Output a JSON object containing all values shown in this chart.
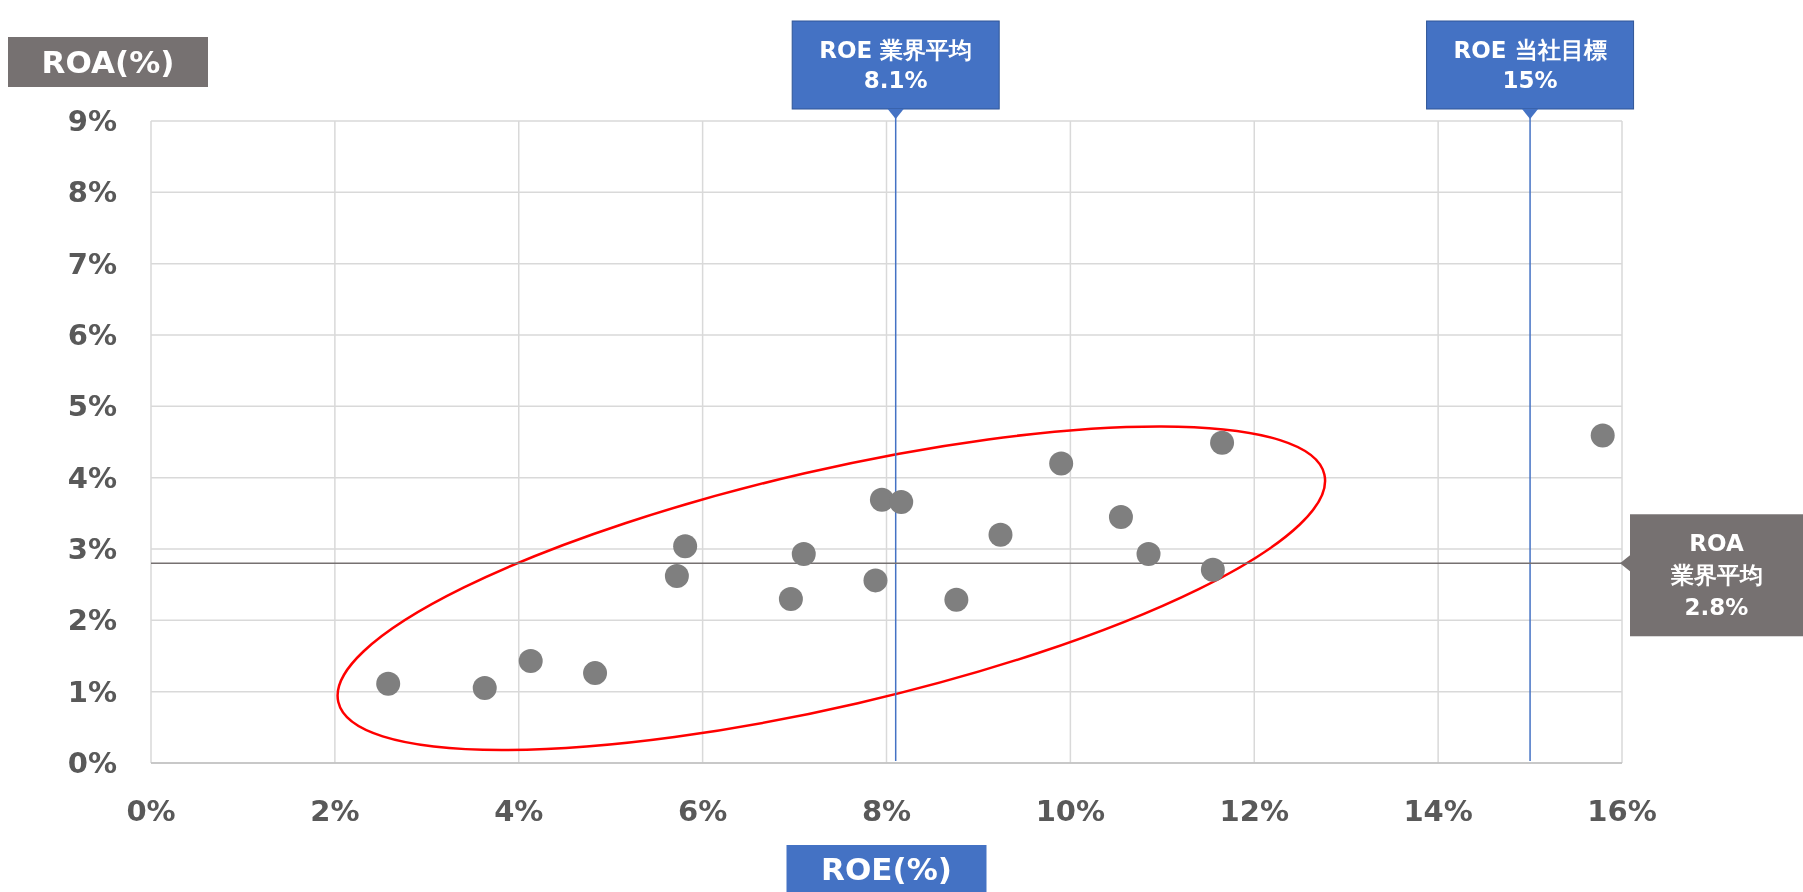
{
  "chart_data": {
    "type": "scatter",
    "xlabel": "ROE(%)",
    "ylabel": "ROA(%)",
    "x": [
      2.58,
      3.63,
      4.13,
      4.83,
      5.72,
      5.81,
      6.96,
      7.1,
      7.88,
      7.95,
      8.16,
      8.76,
      9.24,
      9.9,
      10.55,
      10.85,
      11.55,
      11.65,
      15.79
    ],
    "series": [
      {
        "color": "#7f7f7f",
        "values": [
          1.11,
          1.05,
          1.43,
          1.26,
          2.62,
          3.04,
          2.3,
          2.93,
          2.56,
          3.69,
          3.66,
          2.29,
          3.2,
          4.2,
          3.45,
          2.93,
          2.71,
          4.49,
          4.59
        ]
      }
    ],
    "xlim": [
      0,
      16
    ],
    "ylim": [
      0,
      9
    ],
    "xticks": [
      {
        "value": 0,
        "label": "0%"
      },
      {
        "value": 2,
        "label": "2%"
      },
      {
        "value": 4,
        "label": "4%"
      },
      {
        "value": 6,
        "label": "6%"
      },
      {
        "value": 8,
        "label": "8%"
      },
      {
        "value": 10,
        "label": "10%"
      },
      {
        "value": 12,
        "label": "12%"
      },
      {
        "value": 14,
        "label": "14%"
      },
      {
        "value": 16,
        "label": "16%"
      }
    ],
    "yticks": [
      {
        "value": 0,
        "label": "0%"
      },
      {
        "value": 1,
        "label": "1%"
      },
      {
        "value": 2,
        "label": "2%"
      },
      {
        "value": 3,
        "label": "3%"
      },
      {
        "value": 4,
        "label": "4%"
      },
      {
        "value": 5,
        "label": "5%"
      },
      {
        "value": 6,
        "label": "6%"
      },
      {
        "value": 7,
        "label": "7%"
      },
      {
        "value": 8,
        "label": "8%"
      },
      {
        "value": 9,
        "label": "9%"
      }
    ],
    "grid": true,
    "marker": "circle",
    "ref_lines": [
      {
        "axis": "x",
        "value": 8.1,
        "label": "ROE 業界平均\n8.1%",
        "color": "#4472c4"
      },
      {
        "axis": "x",
        "value": 15,
        "label": "ROE 当社目標\n15%",
        "color": "#4472c4"
      },
      {
        "axis": "y",
        "value": 2.8,
        "label": "ROA\n業界平均\n2.8%",
        "color": "#767171"
      }
    ]
  }
}
